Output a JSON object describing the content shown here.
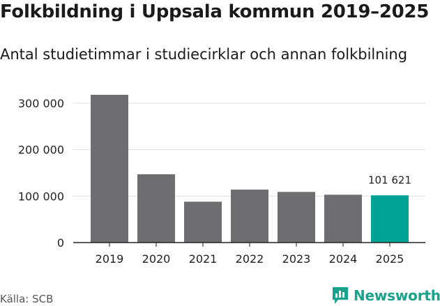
{
  "title": "Folkbildning i Uppsala kommun 2019–2025",
  "subtitle": "Antal studietimmar i studiecirklar och annan folkbilning",
  "source": "Källa: SCB",
  "brand": {
    "name": "Newsworthy",
    "icon": "newsworthy-logo-icon",
    "color": "#1aa38c"
  },
  "colors": {
    "bar": "#6d6d72",
    "highlight": "#00a396",
    "grid": "#dddddd",
    "axis": "#222222",
    "text": "#222222"
  },
  "chart_data": {
    "type": "bar",
    "title": "Folkbildning i Uppsala kommun 2019–2025",
    "subtitle": "Antal studietimmar i studiecirklar och annan folkbilning",
    "xlabel": "",
    "ylabel": "",
    "categories": [
      "2019",
      "2020",
      "2021",
      "2022",
      "2023",
      "2024",
      "2025"
    ],
    "values": [
      318000,
      147000,
      88000,
      114000,
      109000,
      103000,
      101621
    ],
    "ylim": [
      0,
      330000
    ],
    "yticks": [
      0,
      100000,
      200000,
      300000
    ],
    "ytick_labels": [
      "0",
      "100 000",
      "200 000",
      "300 000"
    ],
    "highlight_index": 6,
    "data_labels": [
      {
        "index": 6,
        "text": "101 621"
      }
    ],
    "grid": true,
    "legend": "none"
  }
}
